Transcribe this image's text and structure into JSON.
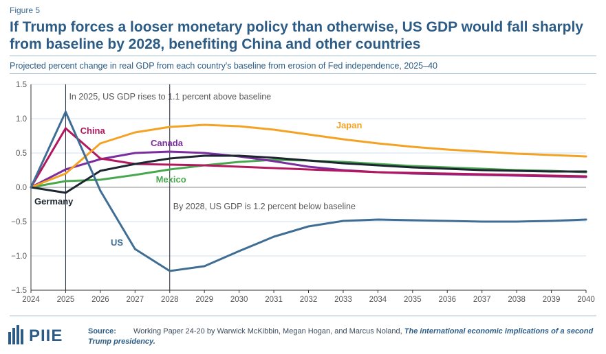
{
  "figure_label": "Figure 5",
  "title": "If Trump forces a looser monetary policy than otherwise, US GDP would fall sharply from baseline by 2028, benefiting China and other countries",
  "subtitle": "Projected percent change in real GDP from each country's baseline from erosion of Fed independence, 2025–40",
  "logo_text": "PIIE",
  "source": {
    "label": "Source:",
    "text": "Working Paper 24-20 by Warwick McKibbin, Megan Hogan, and Marcus Noland,",
    "title": "The international economic implications of a second Trump presidency."
  },
  "colors": {
    "US": "#3f6d94",
    "China": "#b3185e",
    "Japan": "#f4a224",
    "Canada": "#7b2c9e",
    "Mexico": "#49a84f",
    "Germany": "#1c2530",
    "grid": "#cfe0ec",
    "axis": "#333333",
    "annotation": "#555555"
  },
  "chart_data": {
    "type": "line",
    "title": "Projected percent change in real GDP from each country's baseline from erosion of Fed independence, 2025–40",
    "xlabel": "",
    "ylabel": "",
    "x": [
      2024,
      2025,
      2026,
      2027,
      2028,
      2029,
      2030,
      2031,
      2032,
      2033,
      2034,
      2035,
      2036,
      2037,
      2038,
      2039,
      2040
    ],
    "x_ticks": [
      "2024",
      "2025",
      "2026",
      "2027",
      "2028",
      "2029",
      "2030",
      "2031",
      "2032",
      "2033",
      "2034",
      "2035",
      "2036",
      "2037",
      "2038",
      "2039",
      "2040"
    ],
    "ylim": [
      -1.5,
      1.5
    ],
    "y_ticks": [
      "1.5",
      "1.0",
      "0.5",
      "0.0",
      "−0.5",
      "−1.0",
      "−1.5"
    ],
    "y_tick_values": [
      1.5,
      1.0,
      0.5,
      0.0,
      -0.5,
      -1.0,
      -1.5
    ],
    "grid": true,
    "series": [
      {
        "name": "US",
        "label": "US",
        "values": [
          0.0,
          1.1,
          -0.05,
          -0.9,
          -1.22,
          -1.15,
          -0.93,
          -0.72,
          -0.57,
          -0.49,
          -0.47,
          -0.48,
          -0.49,
          -0.5,
          -0.5,
          -0.49,
          -0.47
        ]
      },
      {
        "name": "China",
        "label": "China",
        "values": [
          0.0,
          0.86,
          0.42,
          0.34,
          0.33,
          0.32,
          0.3,
          0.28,
          0.26,
          0.24,
          0.22,
          0.21,
          0.2,
          0.19,
          0.18,
          0.17,
          0.16
        ]
      },
      {
        "name": "Japan",
        "label": "Japan",
        "values": [
          0.0,
          0.2,
          0.64,
          0.8,
          0.88,
          0.91,
          0.89,
          0.84,
          0.77,
          0.7,
          0.64,
          0.59,
          0.55,
          0.52,
          0.49,
          0.47,
          0.45
        ]
      },
      {
        "name": "Canada",
        "label": "Canada",
        "values": [
          0.0,
          0.26,
          0.41,
          0.5,
          0.52,
          0.5,
          0.45,
          0.38,
          0.3,
          0.25,
          0.22,
          0.2,
          0.19,
          0.18,
          0.17,
          0.16,
          0.15
        ]
      },
      {
        "name": "Mexico",
        "label": "Mexico",
        "values": [
          0.0,
          0.09,
          0.11,
          0.18,
          0.26,
          0.32,
          0.37,
          0.4,
          0.39,
          0.37,
          0.34,
          0.31,
          0.29,
          0.27,
          0.25,
          0.24,
          0.22
        ]
      },
      {
        "name": "Germany",
        "label": "Germany",
        "values": [
          0.0,
          -0.08,
          0.24,
          0.34,
          0.42,
          0.46,
          0.46,
          0.43,
          0.39,
          0.35,
          0.32,
          0.29,
          0.27,
          0.25,
          0.24,
          0.23,
          0.23
        ]
      }
    ],
    "annotations": [
      {
        "x": 2025,
        "text": "In 2025, US GDP rises to 1.1 percent above baseline"
      },
      {
        "x": 2028,
        "text": "By 2028, US GDP is 1.2 percent below baseline"
      }
    ]
  }
}
